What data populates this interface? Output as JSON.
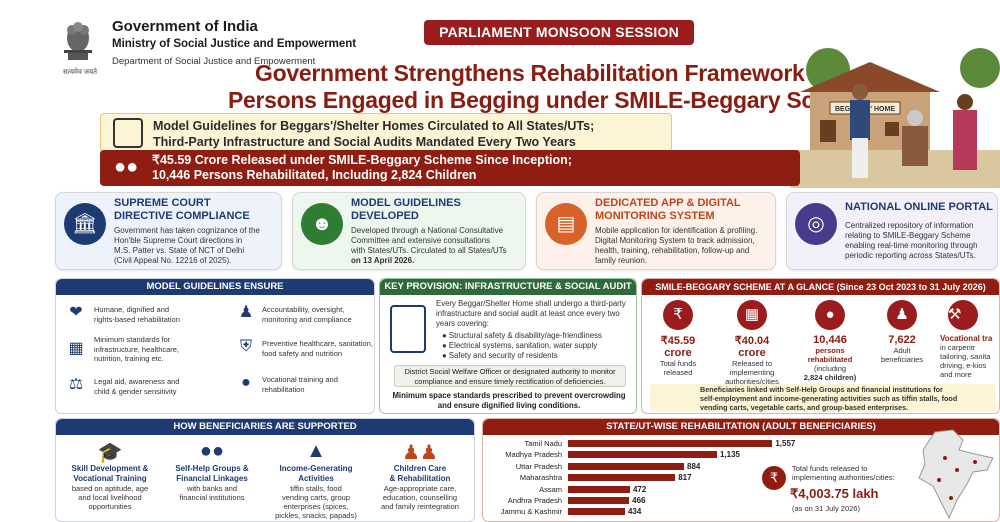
{
  "header": {
    "gov_title": "Government of India",
    "ministry": "Ministry of Social Justice and Empowerment",
    "department": "Department of Social Justice and Empowerment",
    "motto": "सत्यमेव जयते",
    "session_badge": "PARLIAMENT MONSOON SESSION",
    "headline_line1": "Government Strengthens Rehabilitation Framework",
    "headline_line2": "Persons Engaged in Begging under SMILE-Beggary Scheme"
  },
  "illustration": {
    "sign": "BEGGARS' HOME"
  },
  "highlights": {
    "first_line1": "Model Guidelines for Beggars'/Shelter Homes Circulated to All States/UTs;",
    "first_line2": "Third-Party Infrastructure and Social Audits Mandated Every Two Years",
    "second_line1": "₹45.59 Crore Released under SMILE-Beggary Scheme Since Inception;",
    "second_line2": "10,446 Persons Rehabilitated, Including 2,824 Children"
  },
  "cards": [
    {
      "title": "SUPREME COURT\nDIRECTIVE COMPLIANCE",
      "title1": "SUPREME COURT",
      "title2": "DIRECTIVE COMPLIANCE",
      "b1": "Government has taken cognizance of the",
      "b2": "Hon'ble Supreme Court directions in",
      "b3": "M.S. Patter vs. State of NCT of Delhi",
      "b4": "(Civil Appeal No. 12216 of 2025).",
      "color": "#1e3a73",
      "icon": "court-icon"
    },
    {
      "title1": "MODEL GUIDELINES",
      "title2": "DEVELOPED",
      "b1": "Developed through a National Consultative",
      "b2": "Committee and extensive consultations",
      "b3": "with States/UTs. Circulated to all States/UTs",
      "b4": "on 13 April 2026.",
      "color": "#2e7d32",
      "icon": "people-icon"
    },
    {
      "title1": "DEDICATED APP & DIGITAL",
      "title2": "MONITORING SYSTEM",
      "b1": "Mobile application for identification & profiling.",
      "b2": "Digital Monitoring System to track admission,",
      "b3": "health, training, rehabilitation, follow-up and",
      "b4": "family reunion.",
      "color": "#d9622b",
      "icon": "mobile-icon"
    },
    {
      "title1": "NATIONAL ONLINE PORTAL",
      "title2": "",
      "b1": "Centralized repository of information",
      "b2": "relating to SMILE-Beggary Scheme",
      "b3": "enabling real-time monitoring through",
      "b4": "periodic reporting across States/UTs.",
      "color": "#4a3a8c",
      "icon": "globe-icon"
    }
  ],
  "model_guidelines": {
    "heading": "MODEL GUIDELINES ENSURE",
    "items": [
      {
        "l1": "Humane, dignified and",
        "l2": "rights-based rehabilitation",
        "l3": ""
      },
      {
        "l1": "Minimum standards for",
        "l2": "infrastructure, healthcare,",
        "l3": "nutrition, training etc."
      },
      {
        "l1": "Legal aid, awareness and",
        "l2": "child & gender sensitivity",
        "l3": ""
      },
      {
        "l1": "Accountability, oversight,",
        "l2": "monitoring and compliance",
        "l3": ""
      },
      {
        "l1": "Preventive healthcare, sanitation,",
        "l2": "food safety and nutrition",
        "l3": ""
      },
      {
        "l1": "Vocational training and",
        "l2": "rehabilitation",
        "l3": ""
      }
    ]
  },
  "key_provision": {
    "heading": "KEY PROVISION: INFRASTRUCTURE & SOCIAL AUDIT",
    "intro1": "Every Beggar/Shelter Home shall undergo a third-party",
    "intro2": "infrastructure and social audit at least once every two",
    "intro3": "years covering:",
    "bullets": [
      "Structural safety & disability/age-friendliness",
      "Electrical systems, sanitation, water supply",
      "Safety and security of residents"
    ],
    "officer1": "District Social Welfare Officer or designated authority to monitor",
    "officer2": "compliance and ensure timely rectification of deficiencies.",
    "space1": "Minimum space standards prescribed to prevent overcrowding",
    "space2": "and ensure dignified living conditions."
  },
  "glance": {
    "heading": "SMILE-BEGGARY SCHEME AT A GLANCE (Since 23 Oct 2023 to 31 July 2026)",
    "stats": [
      {
        "value": "₹45.59 crore",
        "l1": "Total funds",
        "l2": "released",
        "l3": "",
        "l4": ""
      },
      {
        "value": "₹40.04 crore",
        "l1": "Released to",
        "l2": "implementing",
        "l3": "authorities/cities",
        "l4": ""
      },
      {
        "value": "10,446",
        "l1": "persons",
        "l2": "rehabilitated",
        "l3": "(including",
        "l4": "2,824 children)"
      },
      {
        "value": "7,622",
        "l1": "Adult",
        "l2": "beneficiaries",
        "l3": "",
        "l4": ""
      },
      {
        "value": "Vocational tra",
        "l1": "in carpentr",
        "l2": "tailoring, sanita",
        "l3": "driving, e-kios",
        "l4": "and more"
      }
    ],
    "note1": "Beneficiaries linked with Self-Help Groups and financial institutions for",
    "note2": "self-employment and income-generating activities such as tiffin stalls, food",
    "note3": "vending carts, vegetable carts, and group-based enterprises."
  },
  "beneficiaries": {
    "heading": "HOW BENEFICIARIES ARE SUPPORTED",
    "items": [
      {
        "t1": "Skill Development &",
        "t2": "Vocational Training",
        "d1": "based on aptitude, age",
        "d2": "and local livelihood",
        "d3": "opportunities"
      },
      {
        "t1": "Self-Help Groups &",
        "t2": "Financial Linkages",
        "d1": "with banks and",
        "d2": "financial institutions",
        "d3": ""
      },
      {
        "t1": "Income-Generating",
        "t2": "Activities",
        "d1": "tiffin stalls, food",
        "d2": "vending carts, group",
        "d3": "enterprises (spices,",
        "d4": "pickles, snacks, papads)"
      },
      {
        "t1": "Children Care",
        "t2": "& Rehabilitation",
        "d1": "Age-appropriate care,",
        "d2": "education, counselling",
        "d3": "and family reintegration"
      }
    ]
  },
  "state_chart": {
    "heading": "STATE/UT-WISE REHABILITATION (ADULT BENEFICIARIES)",
    "funds_label1": "Total funds released to",
    "funds_label2": "implementing authorities/cities:",
    "funds_value": "₹4,003.75 lakh",
    "funds_date": "(as on 31 July 2026)"
  },
  "chart_data": {
    "type": "bar",
    "orientation": "horizontal",
    "title": "STATE/UT-WISE REHABILITATION (ADULT BENEFICIARIES)",
    "categories": [
      "Tamil Nadu",
      "Madhya Pradesh",
      "Uttar Pradesh",
      "Maharashtra",
      "Assam",
      "Andhra Pradesh",
      "Jammu & Kashmir"
    ],
    "values": [
      1557,
      1135,
      884,
      817,
      472,
      466,
      434
    ],
    "value_labels": [
      "1,557",
      "1,135",
      "884",
      "817",
      "472",
      "466",
      "434"
    ],
    "xlim": [
      0,
      1600
    ],
    "bar_color": "#8f1d12"
  },
  "colors": {
    "maroon": "#8f1d12",
    "navy": "#1e3a73",
    "green": "#2e7d32",
    "orange": "#d9622b",
    "purple": "#4a3a8c"
  }
}
